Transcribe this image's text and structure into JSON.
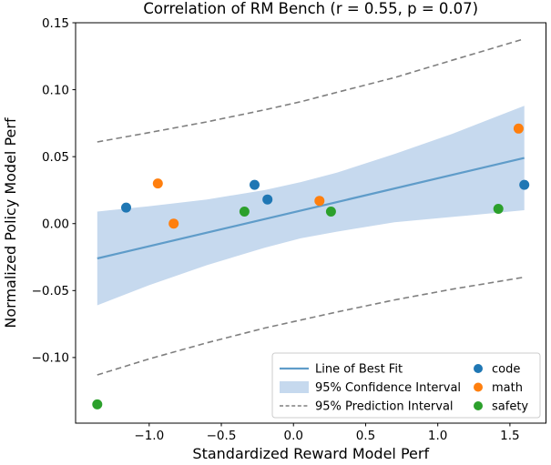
{
  "chart_data": {
    "type": "scatter",
    "title": "Correlation of RM Bench (r = 0.55, p = 0.07)",
    "stats": {
      "r": 0.55,
      "p": 0.07
    },
    "xlabel": "Standardized Reward Model Perf",
    "ylabel": "Normalized Policy Model Perf",
    "xlim": [
      -1.51,
      1.75
    ],
    "ylim": [
      -0.149,
      0.15
    ],
    "grid": false,
    "legend_position": "lower-right",
    "xticks": [
      -1.0,
      -0.5,
      0.0,
      0.5,
      1.0,
      1.5
    ],
    "xtick_labels": [
      "−1.0",
      "−0.5",
      "0.0",
      "0.5",
      "1.0",
      "1.5"
    ],
    "yticks": [
      0.15,
      0.1,
      0.05,
      0.0,
      -0.05,
      -0.1
    ],
    "ytick_labels": [
      "0.15",
      "0.10",
      "0.05",
      "0.00",
      "−0.05",
      "−0.10"
    ],
    "series": [
      {
        "name": "code",
        "color": "#1f77b4",
        "points": [
          [
            -1.16,
            0.012
          ],
          [
            -0.27,
            0.029
          ],
          [
            -0.18,
            0.018
          ],
          [
            1.6,
            0.029
          ]
        ]
      },
      {
        "name": "math",
        "color": "#ff7f0e",
        "points": [
          [
            -0.94,
            0.03
          ],
          [
            -0.83,
            0.0
          ],
          [
            0.18,
            0.017
          ],
          [
            1.56,
            0.071
          ]
        ]
      },
      {
        "name": "safety",
        "color": "#2ca02c",
        "points": [
          [
            -1.36,
            -0.135
          ],
          [
            -0.34,
            0.009
          ],
          [
            0.26,
            0.009
          ],
          [
            1.42,
            0.011
          ]
        ]
      }
    ],
    "fit_line": {
      "label": "Line of Best Fit",
      "color": "#5f9cc9",
      "slope": 0.0253,
      "intercept": 0.0085,
      "x": [
        -1.36,
        1.6
      ],
      "y": [
        -0.026,
        0.049
      ]
    },
    "confidence_band": {
      "label": "95% Confidence Interval",
      "color": "#c6d9ee",
      "x": [
        -1.36,
        -1.0,
        -0.6,
        -0.2,
        0.05,
        0.3,
        0.7,
        1.1,
        1.6
      ],
      "upper": [
        0.009,
        0.013,
        0.018,
        0.025,
        0.031,
        0.038,
        0.052,
        0.067,
        0.088
      ],
      "lower": [
        -0.061,
        -0.046,
        -0.031,
        -0.018,
        -0.011,
        -0.006,
        0.001,
        0.005,
        0.01
      ]
    },
    "prediction_interval": {
      "label": "95% Prediction Interval",
      "color": "#7f7f7f",
      "x": [
        -1.36,
        -1.0,
        -0.6,
        -0.2,
        0.05,
        0.3,
        0.7,
        1.1,
        1.6
      ],
      "upper": [
        0.061,
        0.068,
        0.076,
        0.085,
        0.091,
        0.098,
        0.109,
        0.122,
        0.138
      ],
      "lower": [
        -0.113,
        -0.101,
        -0.089,
        -0.078,
        -0.072,
        -0.066,
        -0.057,
        -0.049,
        -0.04
      ]
    }
  }
}
